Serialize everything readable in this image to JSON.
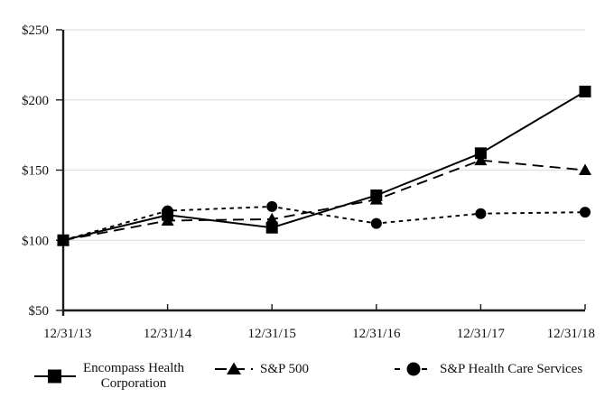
{
  "chart_data": {
    "type": "line",
    "title": "",
    "xlabel": "",
    "ylabel": "",
    "x_categories": [
      "12/31/13",
      "12/31/14",
      "12/31/15",
      "12/31/16",
      "12/31/17",
      "12/31/18"
    ],
    "y_ticks": [
      250,
      200,
      150,
      100,
      50
    ],
    "y_tick_labels": [
      "$250",
      "$200",
      "$150",
      "$100",
      "$50"
    ],
    "ylim": [
      50,
      250
    ],
    "grid": "horizontal-light",
    "legend_position": "bottom",
    "colors": {
      "series": "#000000",
      "grid": "#e0e0e0",
      "axis": "#1a1a1a",
      "text": "#111111",
      "background": "#ffffff"
    },
    "series": [
      {
        "name": "Encompass Health Corporation",
        "marker": "square",
        "line_style": "solid",
        "values": [
          100,
          118,
          109,
          132,
          162,
          206
        ]
      },
      {
        "name": "S&P 500",
        "marker": "triangle",
        "line_style": "long-dash",
        "values": [
          100,
          114,
          115,
          129,
          157,
          150
        ]
      },
      {
        "name": "S&P Health Care Services",
        "marker": "circle",
        "line_style": "short-dash",
        "values": [
          100,
          121,
          124,
          112,
          119,
          120
        ]
      }
    ]
  },
  "legend": {
    "items": [
      {
        "label_line1": "Encompass Health",
        "label_line2": "Corporation"
      },
      {
        "label": "S&P 500"
      },
      {
        "label": "S&P Health Care Services"
      }
    ]
  }
}
